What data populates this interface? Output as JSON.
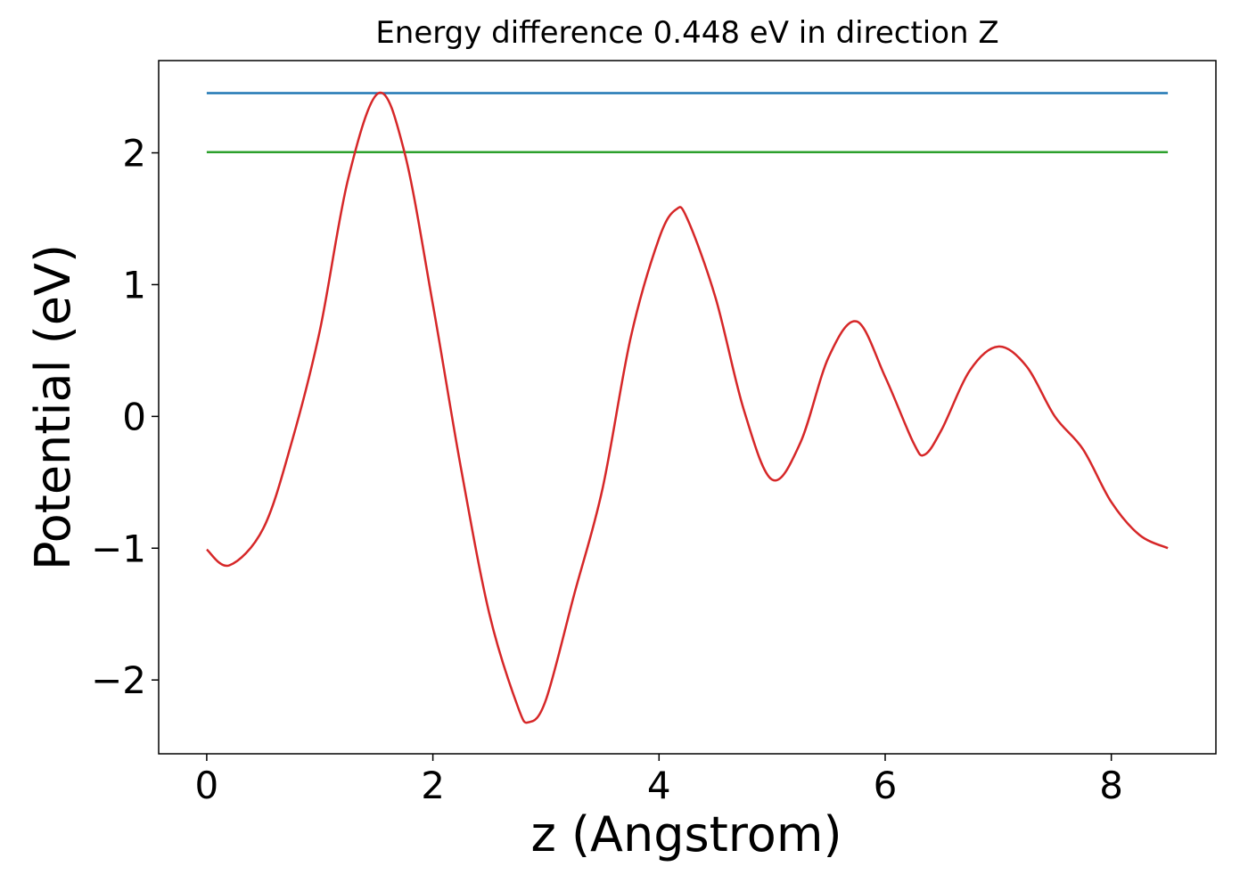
{
  "chart_data": {
    "type": "line",
    "title": "Energy difference 0.448 eV in direction Z",
    "xlabel": "z (Angstrom)",
    "ylabel": "Potential (eV)",
    "xlim": [
      -0.425,
      8.925
    ],
    "ylim": [
      -2.56,
      2.7
    ],
    "xticks": [
      0,
      2,
      4,
      6,
      8
    ],
    "yticks": [
      {
        "value": -2,
        "label": "−2"
      },
      {
        "value": -1,
        "label": "−1"
      },
      0,
      1,
      2
    ],
    "grid": false,
    "series": [
      {
        "color": "#1f77b4",
        "x": [
          0,
          8.5
        ],
        "values": [
          2.453,
          2.453
        ]
      },
      {
        "color": "#2ca02c",
        "x": [
          0,
          8.5
        ],
        "values": [
          2.005,
          2.005
        ]
      },
      {
        "color": "#d62728",
        "x": [
          0,
          0.2,
          0.5,
          0.75,
          1.0,
          1.25,
          1.52,
          1.75,
          2.0,
          2.25,
          2.5,
          2.75,
          2.85,
          3.0,
          3.25,
          3.5,
          3.75,
          4.0,
          4.15,
          4.25,
          4.5,
          4.75,
          5.0,
          5.25,
          5.5,
          5.75,
          6.0,
          6.25,
          6.35,
          6.5,
          6.75,
          7.0,
          7.25,
          7.5,
          7.75,
          8.0,
          8.25,
          8.5
        ],
        "values": [
          -1.01,
          -1.13,
          -0.85,
          -0.2,
          0.65,
          1.8,
          2.453,
          2.0,
          0.85,
          -0.4,
          -1.5,
          -2.2,
          -2.32,
          -2.15,
          -1.35,
          -0.55,
          0.6,
          1.35,
          1.57,
          1.5,
          0.9,
          0.05,
          -0.48,
          -0.2,
          0.45,
          0.72,
          0.3,
          -0.2,
          -0.29,
          -0.1,
          0.35,
          0.53,
          0.38,
          0.0,
          -0.25,
          -0.65,
          -0.9,
          -1.0
        ]
      }
    ]
  }
}
